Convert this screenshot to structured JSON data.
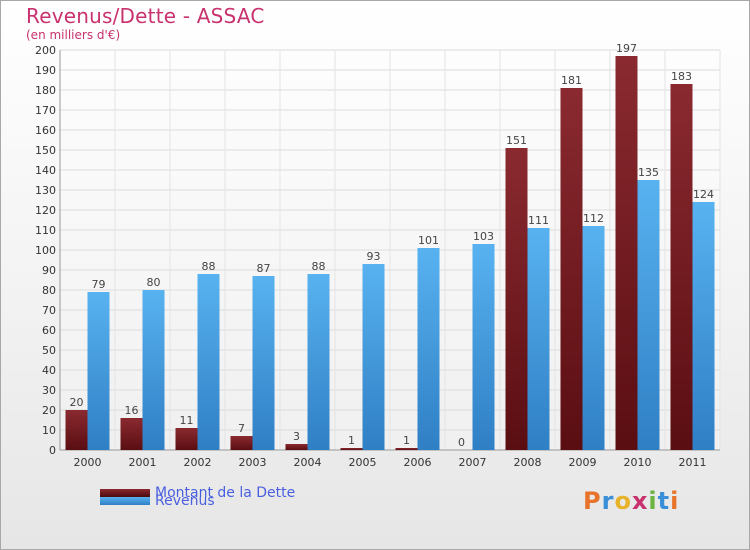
{
  "chart_data": {
    "type": "bar",
    "title": "Revenus/Dette - ASSAC",
    "subtitle": "(en milliers d'€)",
    "xlabel": "",
    "ylabel": "",
    "ylim": [
      0,
      200
    ],
    "ytick_step": 10,
    "grid": true,
    "categories": [
      "2000",
      "2001",
      "2002",
      "2003",
      "2004",
      "2005",
      "2006",
      "2007",
      "2008",
      "2009",
      "2010",
      "2011"
    ],
    "series": [
      {
        "name": "Montant de la Dette",
        "color": "#7a1f25",
        "values": [
          20,
          16,
          11,
          7,
          3,
          1,
          1,
          0,
          151,
          181,
          197,
          183
        ]
      },
      {
        "name": "Revenus",
        "color": "#4aa3e6",
        "values": [
          79,
          80,
          88,
          87,
          88,
          93,
          101,
          103,
          111,
          112,
          135,
          124
        ]
      }
    ],
    "legend_position": "bottom-left"
  },
  "logo": {
    "text": "Proxiti",
    "colors": [
      "#e8732a",
      "#3a8fd8",
      "#e8b32a",
      "#c8326e",
      "#6db33f",
      "#3a8fd8",
      "#e8732a"
    ]
  }
}
